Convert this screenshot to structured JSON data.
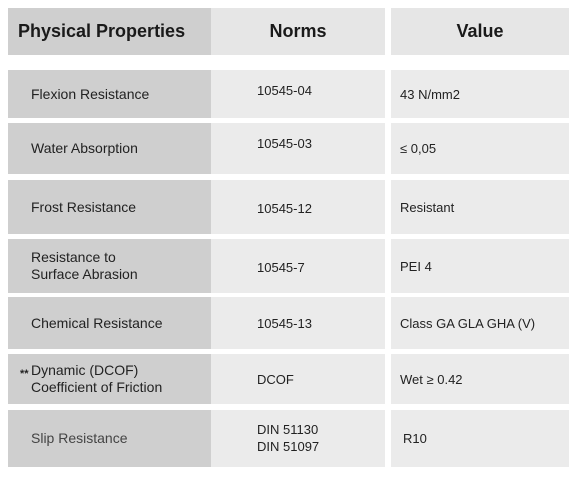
{
  "header": {
    "property": "Physical Properties",
    "norms": "Norms",
    "value": "Value"
  },
  "rows": [
    {
      "property": [
        "Flexion Resistance"
      ],
      "norms": [
        "10545-04"
      ],
      "value": "43 N/mm2",
      "marker": ""
    },
    {
      "property": [
        "Water Absorption"
      ],
      "norms": [
        "10545-03"
      ],
      "value": "≤ 0,05",
      "marker": ""
    },
    {
      "property": [
        "Frost Resistance"
      ],
      "norms": [
        "10545-12"
      ],
      "value": "Resistant",
      "marker": ""
    },
    {
      "property": [
        "Resistance to",
        "Surface Abrasion"
      ],
      "norms": [
        "10545-7"
      ],
      "value": "PEI 4",
      "marker": ""
    },
    {
      "property": [
        "Chemical Resistance"
      ],
      "norms": [
        "10545-13"
      ],
      "value": "Class GA GLA GHA (V)",
      "marker": ""
    },
    {
      "property": [
        "Dynamic (DCOF)",
        "Coefficient of Friction"
      ],
      "norms": [
        "DCOF"
      ],
      "value": "Wet ≥ 0.42",
      "marker": "**"
    },
    {
      "property": [
        "Slip Resistance"
      ],
      "norms": [
        "DIN 51130",
        "DIN 51097"
      ],
      "value": "R10",
      "marker": ""
    }
  ]
}
